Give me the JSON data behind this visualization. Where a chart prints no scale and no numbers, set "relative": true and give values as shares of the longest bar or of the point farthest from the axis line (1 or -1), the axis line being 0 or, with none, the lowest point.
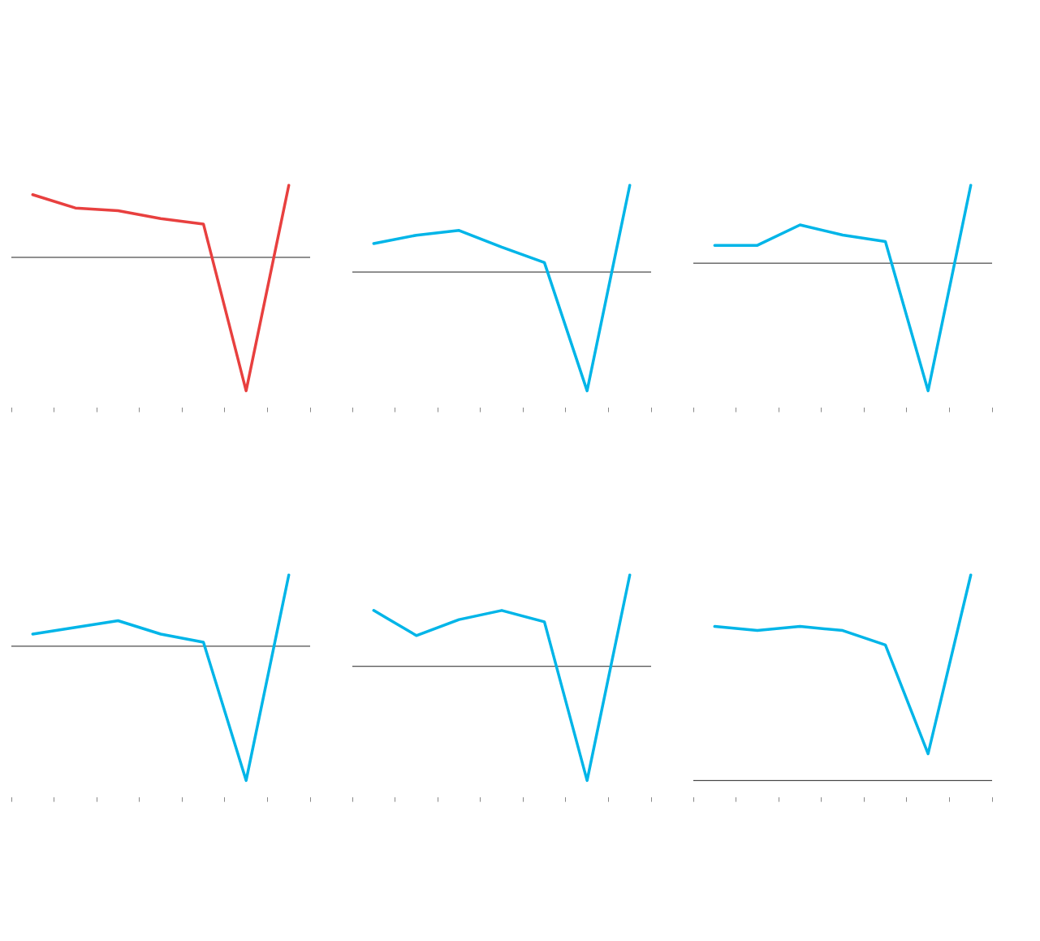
{
  "chart_data": [
    {
      "type": "line",
      "relative": true,
      "categories": [
        null,
        null,
        null,
        null,
        null,
        null,
        null
      ],
      "series": [
        {
          "color": "#e8403f",
          "values": [
            0.47,
            0.37,
            0.35,
            0.29,
            0.25,
            -1,
            0.54
          ]
        }
      ]
    },
    {
      "type": "line",
      "relative": true,
      "categories": [
        null,
        null,
        null,
        null,
        null,
        null,
        null
      ],
      "series": [
        {
          "color": "#00b5e8",
          "values": [
            0.24,
            0.31,
            0.35,
            0.21,
            0.08,
            -1,
            0.73
          ]
        }
      ]
    },
    {
      "type": "line",
      "relative": true,
      "categories": [
        null,
        null,
        null,
        null,
        null,
        null,
        null
      ],
      "series": [
        {
          "color": "#00b5e8",
          "values": [
            0.14,
            0.14,
            0.3,
            0.22,
            0.17,
            -1,
            0.61
          ]
        }
      ]
    },
    {
      "type": "line",
      "relative": true,
      "categories": [
        null,
        null,
        null,
        null,
        null,
        null,
        null
      ],
      "series": [
        {
          "color": "#00b5e8",
          "values": [
            0.09,
            0.14,
            0.19,
            0.09,
            0.03,
            -1,
            0.53
          ]
        }
      ]
    },
    {
      "type": "line",
      "relative": true,
      "categories": [
        null,
        null,
        null,
        null,
        null,
        null,
        null
      ],
      "series": [
        {
          "color": "#00b5e8",
          "values": [
            0.49,
            0.27,
            0.41,
            0.49,
            0.39,
            -1,
            0.8
          ]
        }
      ]
    },
    {
      "type": "line",
      "relative": true,
      "categories": [
        null,
        null,
        null,
        null,
        null,
        null,
        null
      ],
      "series": [
        {
          "color": "#00b5e8",
          "values": [
            0.75,
            0.73,
            0.75,
            0.73,
            0.66,
            0.13,
            1
          ]
        }
      ]
    }
  ]
}
